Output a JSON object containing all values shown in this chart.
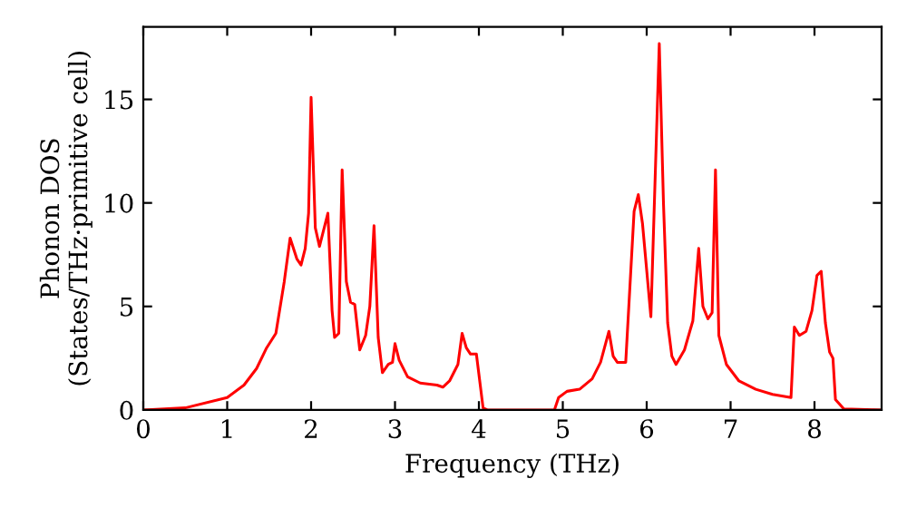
{
  "chart_data": {
    "type": "line",
    "xlabel": "Frequency (THz)",
    "ylabel": "Phonon DOS\n(States/THz·primitive cell)",
    "xlim": [
      0,
      8.8
    ],
    "ylim": [
      0,
      18.5
    ],
    "xticks": [
      0,
      1,
      2,
      3,
      4,
      5,
      6,
      7,
      8
    ],
    "yticks": [
      0,
      5,
      10,
      15
    ],
    "grid": false,
    "legend": false,
    "marker": "none",
    "line_style": "solid",
    "series": [
      {
        "color": "#ff0000",
        "x": [
          0,
          0.5,
          1.0,
          1.2,
          1.35,
          1.47,
          1.58,
          1.68,
          1.75,
          1.83,
          1.88,
          1.93,
          1.97,
          2.0,
          2.05,
          2.1,
          2.2,
          2.25,
          2.28,
          2.33,
          2.37,
          2.42,
          2.47,
          2.52,
          2.58,
          2.65,
          2.7,
          2.75,
          2.8,
          2.85,
          2.92,
          2.97,
          3.0,
          3.05,
          3.15,
          3.3,
          3.5,
          3.57,
          3.65,
          3.75,
          3.8,
          3.85,
          3.9,
          3.97,
          4.05,
          4.1,
          4.9,
          4.95,
          5.05,
          5.2,
          5.35,
          5.45,
          5.55,
          5.6,
          5.65,
          5.75,
          5.85,
          5.9,
          5.95,
          6.05,
          6.15,
          6.2,
          6.25,
          6.3,
          6.35,
          6.45,
          6.55,
          6.62,
          6.67,
          6.73,
          6.78,
          6.82,
          6.86,
          6.95,
          7.1,
          7.3,
          7.5,
          7.72,
          7.76,
          7.82,
          7.9,
          7.97,
          8.03,
          8.08,
          8.13,
          8.18,
          8.22,
          8.25,
          8.35,
          8.8
        ],
        "values": [
          0,
          0.1,
          0.6,
          1.2,
          2,
          3,
          3.7,
          6.2,
          8.3,
          7.3,
          7.0,
          7.8,
          9.5,
          15.1,
          8.8,
          7.9,
          9.5,
          4.8,
          3.5,
          3.7,
          11.6,
          6.2,
          5.2,
          5.1,
          2.9,
          3.6,
          5.0,
          8.9,
          3.5,
          1.8,
          2.2,
          2.3,
          3.2,
          2.4,
          1.6,
          1.3,
          1.2,
          1.1,
          1.4,
          2.2,
          3.7,
          3.0,
          2.7,
          2.7,
          0.1,
          0,
          0,
          0.6,
          0.9,
          1.0,
          1.5,
          2.3,
          3.8,
          2.6,
          2.3,
          2.3,
          9.6,
          10.4,
          9.0,
          4.5,
          17.7,
          10,
          4.2,
          2.6,
          2.2,
          2.9,
          4.3,
          7.8,
          5.0,
          4.4,
          4.7,
          11.6,
          3.6,
          2.2,
          1.4,
          1.0,
          0.75,
          0.6,
          4.0,
          3.6,
          3.8,
          4.8,
          6.5,
          6.7,
          4.2,
          2.8,
          2.5,
          0.5,
          0.05,
          0
        ]
      }
    ]
  }
}
